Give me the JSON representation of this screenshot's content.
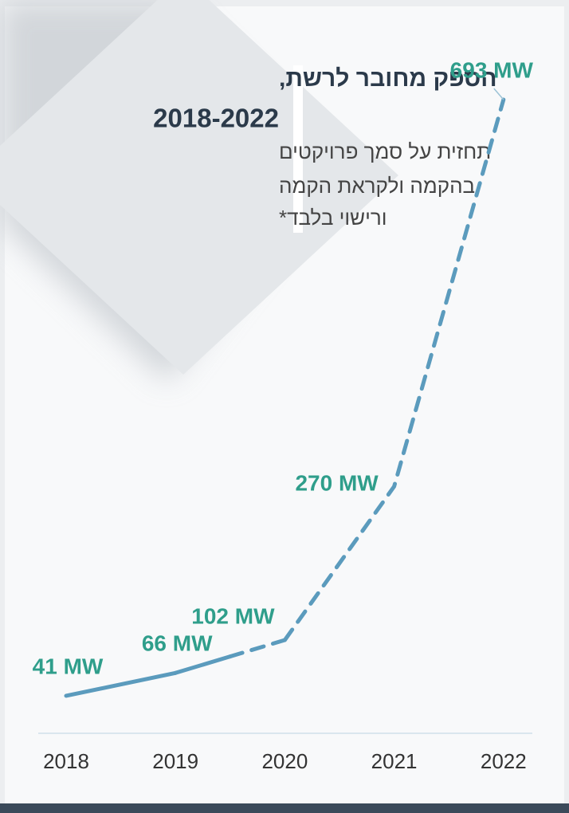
{
  "chart_data": {
    "type": "line",
    "title": "הספק מחובר לרשת,",
    "title_years": "2018-2022",
    "subtitle": [
      "תחזית על סמך פרויקטים",
      "בהקמה ולקראת הקמה",
      "ורישוי בלבד*"
    ],
    "categories": [
      "2018",
      "2019",
      "2020",
      "2021",
      "2022"
    ],
    "series": [
      {
        "color": "#5b9bbd",
        "values": [
          41,
          66,
          102,
          270,
          693
        ],
        "value_labels": [
          "41 MW",
          "66 MW",
          "102 MW",
          "270 MW",
          "693 MW"
        ]
      }
    ],
    "ylim": [
      0,
      700
    ]
  }
}
